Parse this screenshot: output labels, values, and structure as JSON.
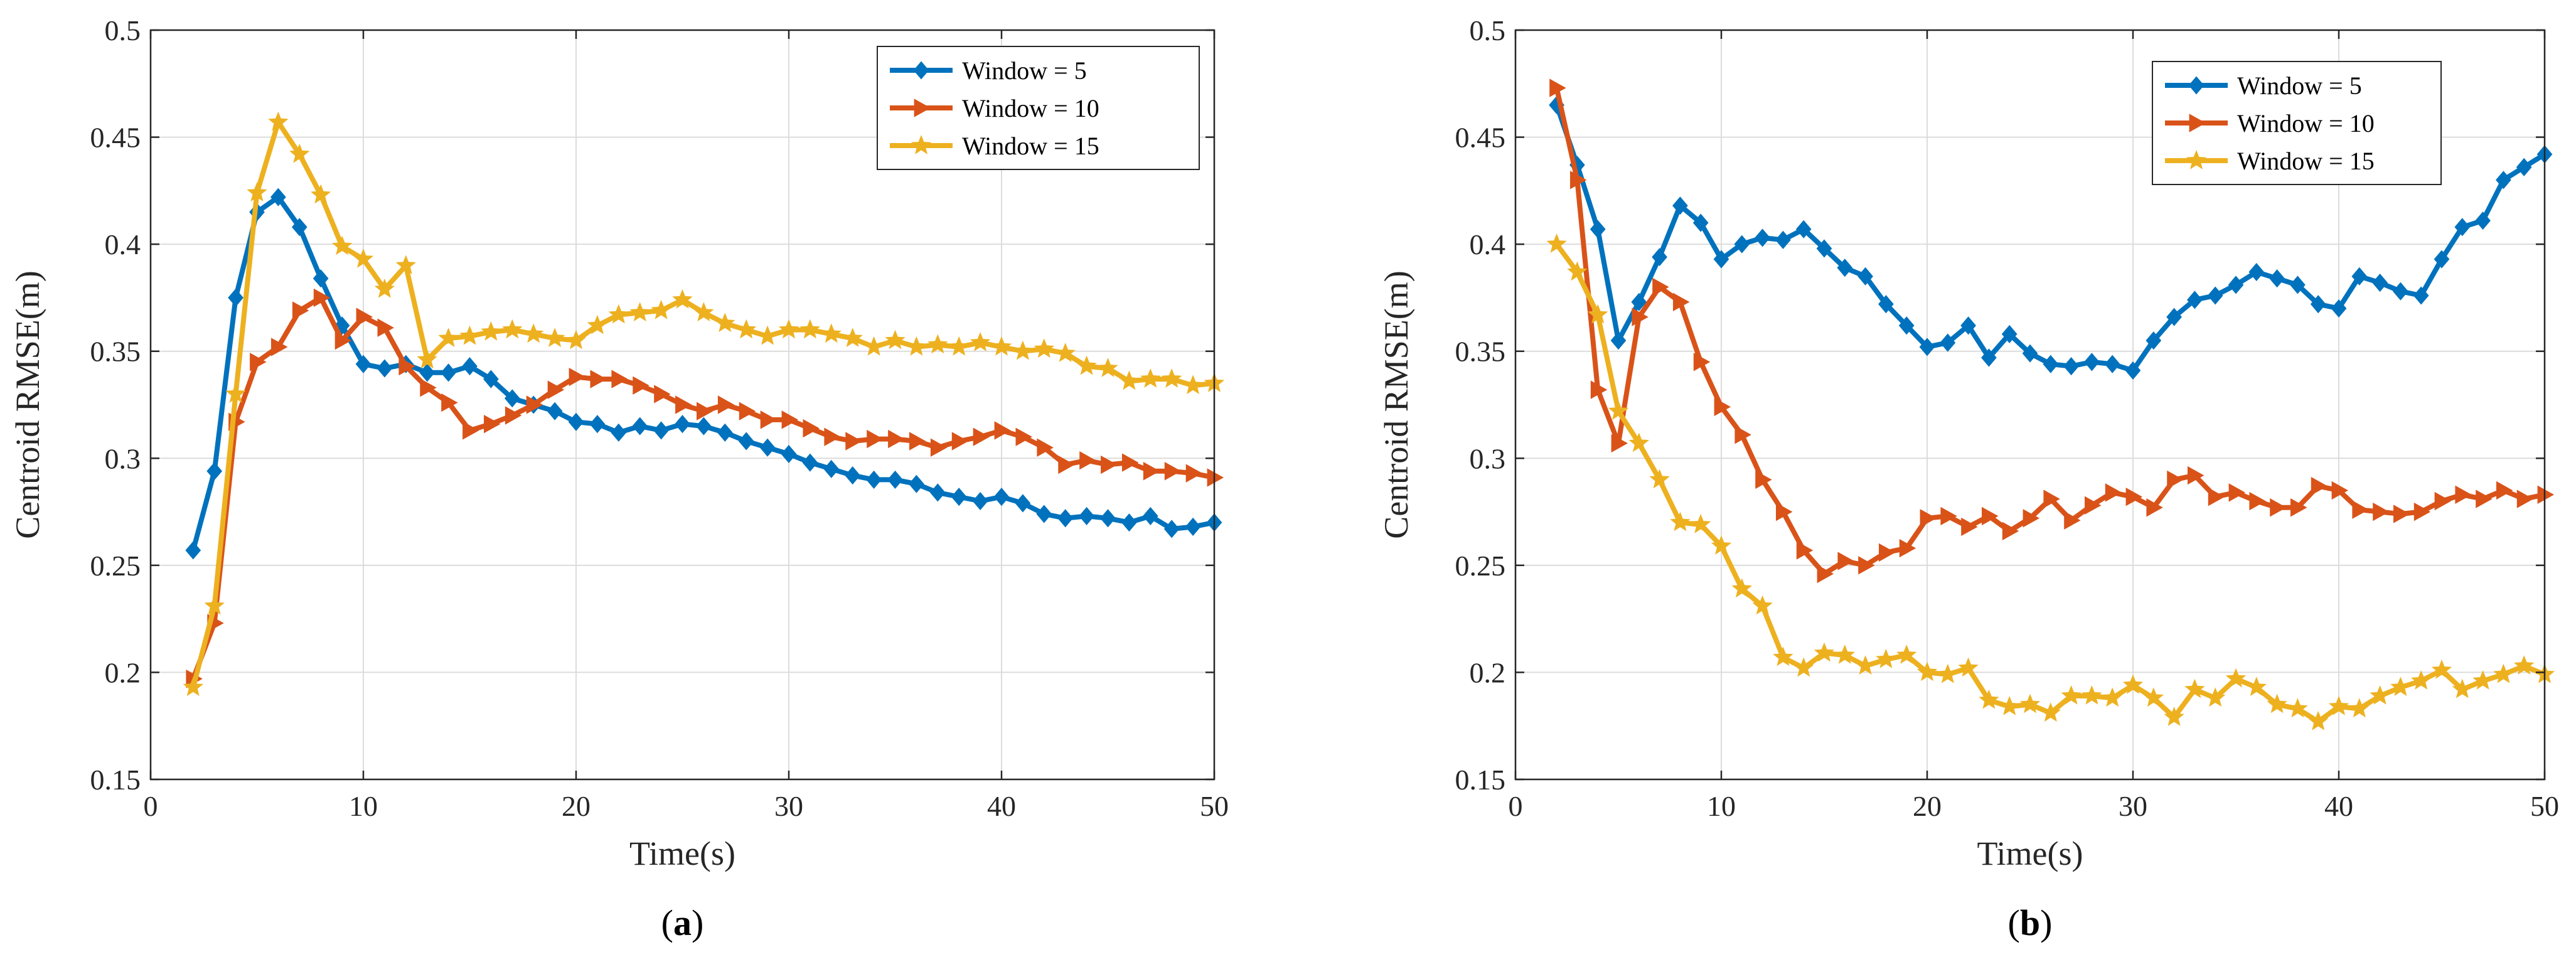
{
  "colors": {
    "blue": "#0072BD",
    "orange": "#D95319",
    "yellow": "#EDB120"
  },
  "chart_data": [
    {
      "type": "line",
      "panel_label": "a",
      "title": "",
      "xlabel": "Time(s)",
      "ylabel": "Centroid RMSE(m)",
      "xlim": [
        0,
        50
      ],
      "ylim": [
        0.15,
        0.5
      ],
      "xticks": [
        0,
        10,
        20,
        30,
        40,
        50
      ],
      "yticks": [
        0.15,
        0.2,
        0.25,
        0.3,
        0.35,
        0.4,
        0.45,
        0.5
      ],
      "ytick_labels": [
        "0.15",
        "0.2",
        "0.25",
        "0.3",
        "0.35",
        "0.4",
        "0.45",
        "0.5"
      ],
      "grid": true,
      "legend_position": "top-right",
      "x": [
        2,
        3,
        4,
        5,
        6,
        7,
        8,
        9,
        10,
        11,
        12,
        13,
        14,
        15,
        16,
        17,
        18,
        19,
        20,
        21,
        22,
        23,
        24,
        25,
        26,
        27,
        28,
        29,
        30,
        31,
        32,
        33,
        34,
        35,
        36,
        37,
        38,
        39,
        40,
        41,
        42,
        43,
        44,
        45,
        46,
        47,
        48,
        49,
        50
      ],
      "series": [
        {
          "name": "Window = 5",
          "color": "#0072BD",
          "marker": "diamond",
          "values": [
            0.257,
            0.294,
            0.375,
            0.415,
            0.422,
            0.408,
            0.384,
            0.362,
            0.344,
            0.342,
            0.344,
            0.34,
            0.34,
            0.343,
            0.337,
            0.328,
            0.325,
            0.322,
            0.317,
            0.316,
            0.312,
            0.315,
            0.313,
            0.316,
            0.315,
            0.312,
            0.308,
            0.305,
            0.302,
            0.298,
            0.295,
            0.292,
            0.29,
            0.29,
            0.288,
            0.284,
            0.282,
            0.28,
            0.282,
            0.279,
            0.274,
            0.272,
            0.273,
            0.272,
            0.27,
            0.273,
            0.267,
            0.268,
            0.27
          ]
        },
        {
          "name": "Window = 10",
          "color": "#D95319",
          "marker": "triangle-right",
          "values": [
            0.197,
            0.223,
            0.317,
            0.345,
            0.352,
            0.369,
            0.375,
            0.355,
            0.366,
            0.361,
            0.343,
            0.333,
            0.326,
            0.313,
            0.316,
            0.32,
            0.325,
            0.332,
            0.338,
            0.337,
            0.337,
            0.334,
            0.33,
            0.325,
            0.322,
            0.325,
            0.322,
            0.318,
            0.318,
            0.314,
            0.31,
            0.308,
            0.309,
            0.309,
            0.308,
            0.305,
            0.308,
            0.31,
            0.313,
            0.31,
            0.305,
            0.297,
            0.299,
            0.297,
            0.298,
            0.294,
            0.294,
            0.293,
            0.291
          ]
        },
        {
          "name": "Window = 15",
          "color": "#EDB120",
          "marker": "star",
          "values": [
            0.193,
            0.231,
            0.33,
            0.424,
            0.457,
            0.442,
            0.423,
            0.399,
            0.393,
            0.379,
            0.39,
            0.346,
            0.356,
            0.357,
            0.359,
            0.36,
            0.358,
            0.356,
            0.355,
            0.362,
            0.367,
            0.368,
            0.369,
            0.374,
            0.368,
            0.363,
            0.36,
            0.357,
            0.36,
            0.36,
            0.358,
            0.356,
            0.352,
            0.355,
            0.352,
            0.353,
            0.352,
            0.354,
            0.352,
            0.35,
            0.351,
            0.349,
            0.343,
            0.342,
            0.336,
            0.337,
            0.337,
            0.334,
            0.335
          ]
        }
      ]
    },
    {
      "type": "line",
      "panel_label": "b",
      "title": "",
      "xlabel": "Time(s)",
      "ylabel": "Centroid RMSE(m)",
      "xlim": [
        0,
        50
      ],
      "ylim": [
        0.15,
        0.5
      ],
      "xticks": [
        0,
        10,
        20,
        30,
        40,
        50
      ],
      "yticks": [
        0.15,
        0.2,
        0.25,
        0.3,
        0.35,
        0.4,
        0.45,
        0.5
      ],
      "ytick_labels": [
        "0.15",
        "0.2",
        "0.25",
        "0.3",
        "0.35",
        "0.4",
        "0.45",
        "0.5"
      ],
      "grid": true,
      "legend_position": "top-right",
      "x": [
        2,
        3,
        4,
        5,
        6,
        7,
        8,
        9,
        10,
        11,
        12,
        13,
        14,
        15,
        16,
        17,
        18,
        19,
        20,
        21,
        22,
        23,
        24,
        25,
        26,
        27,
        28,
        29,
        30,
        31,
        32,
        33,
        34,
        35,
        36,
        37,
        38,
        39,
        40,
        41,
        42,
        43,
        44,
        45,
        46,
        47,
        48,
        49,
        50
      ],
      "series": [
        {
          "name": "Window = 5",
          "color": "#0072BD",
          "marker": "diamond",
          "values": [
            0.465,
            0.437,
            0.407,
            0.355,
            0.373,
            0.394,
            0.418,
            0.41,
            0.393,
            0.4,
            0.403,
            0.402,
            0.407,
            0.398,
            0.389,
            0.385,
            0.372,
            0.362,
            0.352,
            0.354,
            0.362,
            0.347,
            0.358,
            0.349,
            0.344,
            0.343,
            0.345,
            0.344,
            0.341,
            0.355,
            0.366,
            0.374,
            0.376,
            0.381,
            0.387,
            0.384,
            0.381,
            0.372,
            0.37,
            0.385,
            0.382,
            0.378,
            0.376,
            0.393,
            0.408,
            0.411,
            0.43,
            0.436,
            0.442
          ]
        },
        {
          "name": "Window = 10",
          "color": "#D95319",
          "marker": "triangle-right",
          "values": [
            0.473,
            0.43,
            0.332,
            0.307,
            0.366,
            0.38,
            0.373,
            0.345,
            0.324,
            0.311,
            0.29,
            0.275,
            0.257,
            0.246,
            0.252,
            0.25,
            0.256,
            0.258,
            0.272,
            0.273,
            0.268,
            0.273,
            0.266,
            0.272,
            0.281,
            0.271,
            0.278,
            0.284,
            0.282,
            0.277,
            0.29,
            0.292,
            0.282,
            0.284,
            0.28,
            0.277,
            0.277,
            0.287,
            0.285,
            0.276,
            0.275,
            0.274,
            0.275,
            0.28,
            0.283,
            0.281,
            0.285,
            0.281,
            0.283
          ]
        },
        {
          "name": "Window = 15",
          "color": "#EDB120",
          "marker": "star",
          "values": [
            0.4,
            0.387,
            0.367,
            0.322,
            0.307,
            0.29,
            0.27,
            0.269,
            0.259,
            0.239,
            0.231,
            0.207,
            0.202,
            0.209,
            0.208,
            0.203,
            0.206,
            0.208,
            0.2,
            0.199,
            0.202,
            0.187,
            0.184,
            0.185,
            0.181,
            0.189,
            0.189,
            0.188,
            0.194,
            0.188,
            0.179,
            0.192,
            0.188,
            0.197,
            0.193,
            0.185,
            0.183,
            0.177,
            0.184,
            0.183,
            0.189,
            0.193,
            0.196,
            0.201,
            0.192,
            0.196,
            0.199,
            0.203,
            0.199
          ]
        }
      ]
    }
  ]
}
